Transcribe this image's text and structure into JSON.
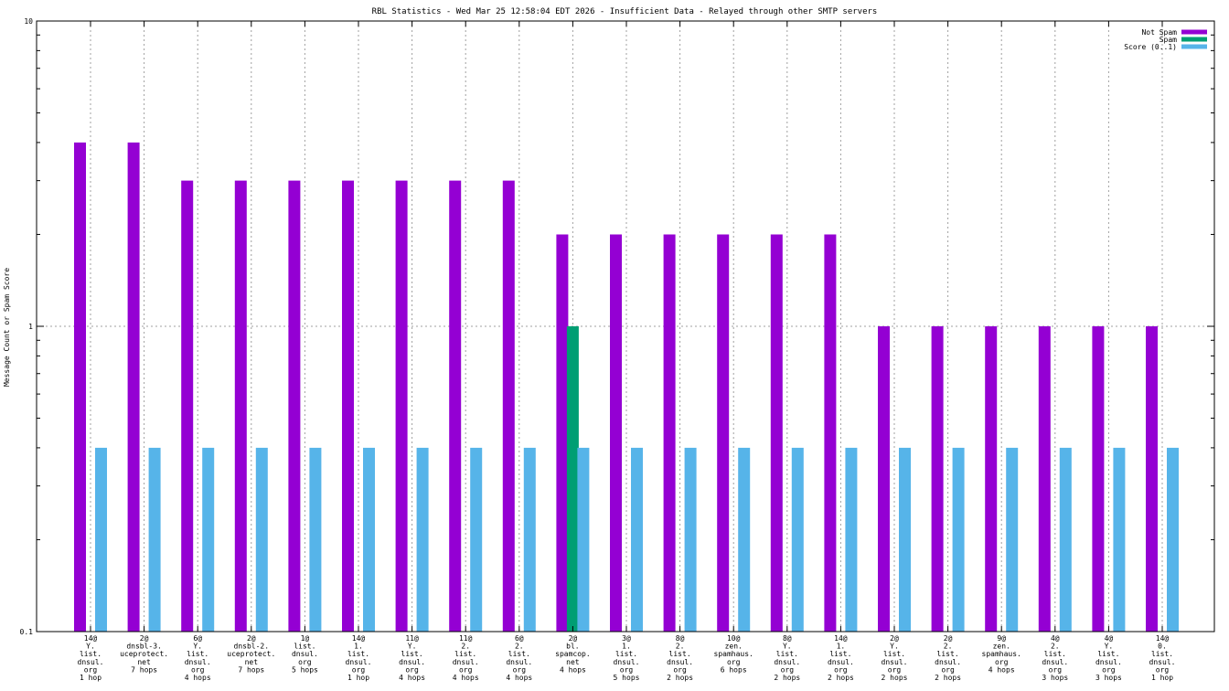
{
  "chart_data": {
    "type": "bar",
    "title": "RBL Statistics - Wed Mar 25 12:58:04 EDT 2026 - Insufficient Data - Relayed through other SMTP servers",
    "xlabel": "",
    "ylabel": "Message Count or Spam Score",
    "y_scale": "log",
    "ylim": [
      0.1,
      10
    ],
    "y_ticks": [
      "0.1",
      "1",
      "10"
    ],
    "grid": true,
    "legend_position": "top-right",
    "categories": [
      [
        "14@",
        "Y.",
        "list.",
        "dnsul.",
        "org",
        "1 hop"
      ],
      [
        "2@",
        "dnsbl-3.",
        "uceprotect.",
        "net",
        "7 hops"
      ],
      [
        "6@",
        "Y.",
        "list.",
        "dnsul.",
        "org",
        "4 hops"
      ],
      [
        "2@",
        "dnsbl-2.",
        "uceprotect.",
        "net",
        "7 hops"
      ],
      [
        "1@",
        "list.",
        "dnsul.",
        "org",
        "5 hops"
      ],
      [
        "14@",
        "1.",
        "list.",
        "dnsul.",
        "org",
        "1 hop"
      ],
      [
        "11@",
        "Y.",
        "list.",
        "dnsul.",
        "org",
        "4 hops"
      ],
      [
        "11@",
        "2.",
        "list.",
        "dnsul.",
        "org",
        "4 hops"
      ],
      [
        "6@",
        "2.",
        "list.",
        "dnsul.",
        "org",
        "4 hops"
      ],
      [
        "2@",
        "bl.",
        "spamcop.",
        "net",
        "4 hops"
      ],
      [
        "3@",
        "1.",
        "list.",
        "dnsul.",
        "org",
        "5 hops"
      ],
      [
        "8@",
        "2.",
        "list.",
        "dnsul.",
        "org",
        "2 hops"
      ],
      [
        "10@",
        "zen.",
        "spamhaus.",
        "org",
        "6 hops"
      ],
      [
        "8@",
        "Y.",
        "list.",
        "dnsul.",
        "org",
        "2 hops"
      ],
      [
        "14@",
        "1.",
        "list.",
        "dnsul.",
        "org",
        "2 hops"
      ],
      [
        "2@",
        "Y.",
        "list.",
        "dnsul.",
        "org",
        "2 hops"
      ],
      [
        "2@",
        "2.",
        "list.",
        "dnsul.",
        "org",
        "2 hops"
      ],
      [
        "9@",
        "zen.",
        "spamhaus.",
        "org",
        "4 hops"
      ],
      [
        "4@",
        "2.",
        "list.",
        "dnsul.",
        "org",
        "3 hops"
      ],
      [
        "4@",
        "Y.",
        "list.",
        "dnsul.",
        "org",
        "3 hops"
      ],
      [
        "14@",
        "0.",
        "list.",
        "dnsul.",
        "org",
        "1 hop"
      ]
    ],
    "series": [
      {
        "name": "Not Spam",
        "color": "#9400d3",
        "values": [
          4,
          4,
          3,
          3,
          3,
          3,
          3,
          3,
          3,
          2,
          2,
          2,
          2,
          2,
          2,
          1,
          1,
          1,
          1,
          1,
          1
        ]
      },
      {
        "name": "Spam",
        "color": "#009e73",
        "values": [
          0,
          0,
          0,
          0,
          0,
          0,
          0,
          0,
          0,
          1,
          0,
          0,
          0,
          0,
          0,
          0,
          0,
          0,
          0,
          0,
          0
        ]
      },
      {
        "name": "Score (0..1)",
        "color": "#56b4e9",
        "values": [
          0.4,
          0.4,
          0.4,
          0.4,
          0.4,
          0.4,
          0.4,
          0.4,
          0.4,
          0.4,
          0.4,
          0.4,
          0.4,
          0.4,
          0.4,
          0.4,
          0.4,
          0.4,
          0.4,
          0.4,
          0.4
        ]
      }
    ]
  }
}
